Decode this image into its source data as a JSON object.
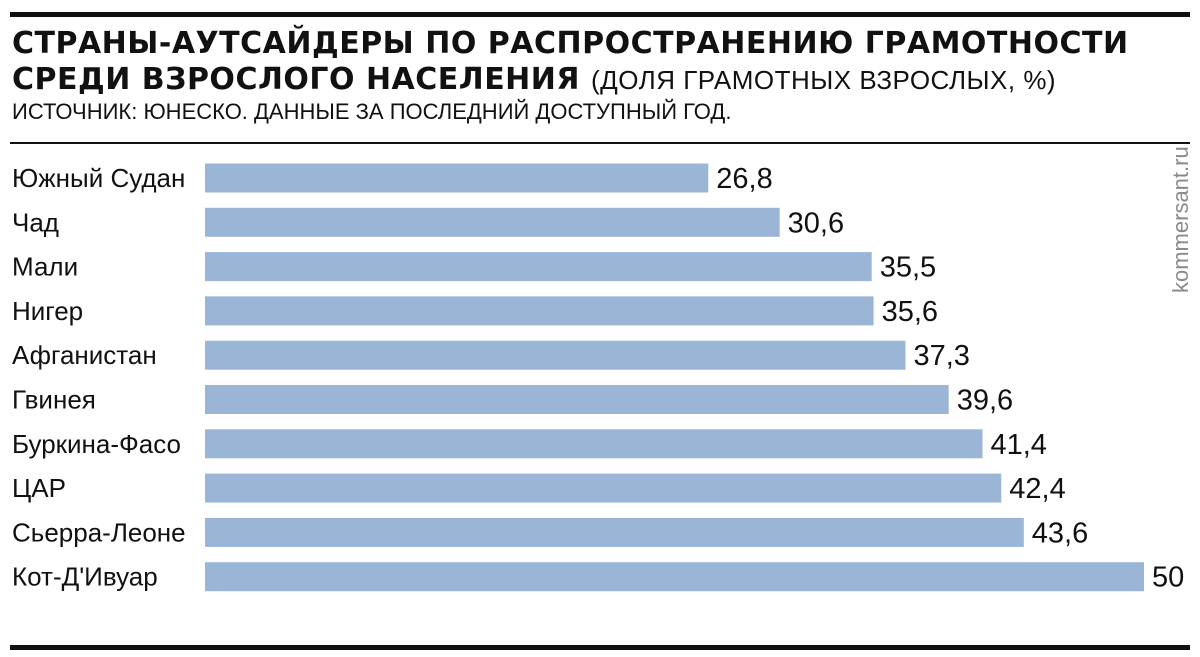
{
  "header": {
    "title_bold": "СТРАНЫ-АУТСАЙДЕРЫ ПО РАСПРОСТРАНЕНИЮ ГРАМОТНОСТИ СРЕДИ ВЗРОСЛОГО НАСЕЛЕНИЯ",
    "title_light": "(ДОЛЯ ГРАМОТНЫХ ВЗРОСЛЫХ, %)",
    "source": "ИСТОЧНИК: ЮНЕСКО. ДАННЫЕ ЗА ПОСЛЕДНИЙ ДОСТУПНЫЙ ГОД."
  },
  "watermark": "kommersant.ru",
  "colors": {
    "bar": "#9ab5d5",
    "text": "#111111",
    "rule": "#111111"
  },
  "chart_data": {
    "type": "bar",
    "orientation": "horizontal",
    "categories": [
      "Южный Судан",
      "Чад",
      "Мали",
      "Нигер",
      "Афганистан",
      "Гвинея",
      "Буркина-Фасо",
      "ЦАР",
      "Сьерра-Леоне",
      "Кот-Д'Ивуар"
    ],
    "values": [
      26.8,
      30.6,
      35.5,
      35.6,
      37.3,
      39.6,
      41.4,
      42.4,
      43.6,
      50
    ],
    "value_labels": [
      "26,8",
      "30,6",
      "35,5",
      "35,6",
      "37,3",
      "39,6",
      "41,4",
      "42,4",
      "43,6",
      "50"
    ],
    "xlim": [
      0,
      50
    ],
    "grid": false,
    "legend": "none"
  }
}
